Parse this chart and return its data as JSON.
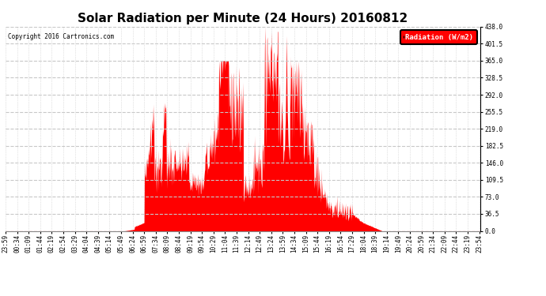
{
  "title": "Solar Radiation per Minute (24 Hours) 20160812",
  "copyright": "Copyright 2016 Cartronics.com",
  "legend_label": "Radiation (W/m2)",
  "yticks": [
    0.0,
    36.5,
    73.0,
    109.5,
    146.0,
    182.5,
    219.0,
    255.5,
    292.0,
    328.5,
    365.0,
    401.5,
    438.0
  ],
  "ymax": 438.0,
  "ymin": 0.0,
  "fill_color": "#ff0000",
  "line_color": "#ff0000",
  "dashed_line_color": "#c8c8c8",
  "background_color": "#ffffff",
  "plot_bg_color": "#ffffff",
  "grid_color": "#c8c8c8",
  "title_fontsize": 11,
  "tick_fontsize": 5.5,
  "xtick_step_minutes": 35,
  "total_minutes": 1440,
  "figwidth": 6.9,
  "figheight": 3.75,
  "dpi": 100
}
